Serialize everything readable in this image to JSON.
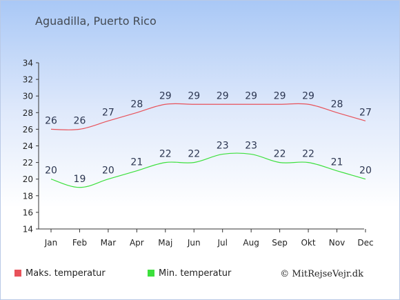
{
  "page": {
    "title": "Aguadilla, Puerto Rico"
  },
  "chart_data": {
    "type": "line",
    "title": "Aguadilla, Puerto Rico",
    "categories": [
      "Jan",
      "Feb",
      "Mar",
      "Apr",
      "Maj",
      "Jun",
      "Jul",
      "Aug",
      "Sep",
      "Okt",
      "Nov",
      "Dec"
    ],
    "series": [
      {
        "name": "Maks. temperatur",
        "color": "#e8525a",
        "values": [
          26,
          26,
          27,
          28,
          29,
          29,
          29,
          29,
          29,
          29,
          28,
          27
        ]
      },
      {
        "name": "Min. temperatur",
        "color": "#3ce03c",
        "values": [
          20,
          19,
          20,
          21,
          22,
          22,
          23,
          23,
          22,
          22,
          21,
          20
        ]
      }
    ],
    "ylim": [
      14,
      34
    ],
    "yticks": [
      14,
      16,
      18,
      20,
      22,
      24,
      26,
      28,
      30,
      32,
      34
    ],
    "grid": false,
    "legend_position": "bottom"
  },
  "legend": {
    "items": [
      {
        "label": "Maks. temperatur",
        "color": "#e8525a"
      },
      {
        "label": "Min. temperatur",
        "color": "#3ce03c"
      }
    ]
  },
  "footer": {
    "copyright": "© MitRejseVejr.dk"
  }
}
